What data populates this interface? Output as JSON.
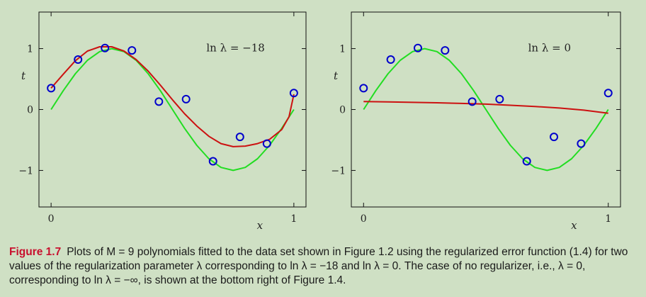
{
  "chart_data": [
    {
      "type": "scatter+line",
      "annotation": "ln λ = −18",
      "xlabel": "x",
      "ylabel": "t",
      "xlim": [
        -0.05,
        1.05
      ],
      "ylim": [
        -1.6,
        1.6
      ],
      "xticks": [
        {
          "v": 0,
          "label": "0"
        },
        {
          "v": 1,
          "label": "1"
        }
      ],
      "yticks": [
        {
          "v": -1,
          "label": "−1"
        },
        {
          "v": 0,
          "label": "0"
        },
        {
          "v": 1,
          "label": "1"
        }
      ],
      "points": {
        "name": "data",
        "x": [
          0.0,
          0.111,
          0.222,
          0.333,
          0.444,
          0.556,
          0.667,
          0.778,
          0.889,
          1.0
        ],
        "y": [
          0.35,
          0.82,
          1.01,
          0.97,
          0.13,
          0.17,
          -0.85,
          -0.45,
          -0.56,
          0.27
        ]
      },
      "series": [
        {
          "name": "sin(2πx)",
          "x": [
            0,
            0.05,
            0.1,
            0.15,
            0.2,
            0.25,
            0.3,
            0.35,
            0.4,
            0.45,
            0.5,
            0.55,
            0.6,
            0.65,
            0.7,
            0.75,
            0.8,
            0.85,
            0.9,
            0.95,
            1.0
          ],
          "y": [
            0.0,
            0.309,
            0.588,
            0.809,
            0.951,
            1.0,
            0.951,
            0.809,
            0.588,
            0.309,
            0.0,
            -0.309,
            -0.588,
            -0.809,
            -0.951,
            -1.0,
            -0.951,
            -0.809,
            -0.588,
            -0.309,
            0.0
          ]
        },
        {
          "name": "M=9 fit",
          "x": [
            0,
            0.05,
            0.1,
            0.15,
            0.2,
            0.25,
            0.3,
            0.35,
            0.4,
            0.45,
            0.5,
            0.55,
            0.6,
            0.65,
            0.7,
            0.75,
            0.8,
            0.85,
            0.9,
            0.95,
            0.98,
            1.0
          ],
          "y": [
            0.35,
            0.58,
            0.8,
            0.96,
            1.03,
            1.03,
            0.96,
            0.82,
            0.63,
            0.4,
            0.16,
            -0.07,
            -0.27,
            -0.44,
            -0.56,
            -0.61,
            -0.6,
            -0.56,
            -0.49,
            -0.33,
            -0.12,
            0.25
          ]
        }
      ]
    },
    {
      "type": "scatter+line",
      "annotation": "ln λ = 0",
      "xlabel": "x",
      "ylabel": "t",
      "xlim": [
        -0.05,
        1.05
      ],
      "ylim": [
        -1.6,
        1.6
      ],
      "xticks": [
        {
          "v": 0,
          "label": "0"
        },
        {
          "v": 1,
          "label": "1"
        }
      ],
      "yticks": [
        {
          "v": -1,
          "label": "−1"
        },
        {
          "v": 0,
          "label": "0"
        },
        {
          "v": 1,
          "label": "1"
        }
      ],
      "points": {
        "name": "data",
        "x": [
          0.0,
          0.111,
          0.222,
          0.333,
          0.444,
          0.556,
          0.667,
          0.778,
          0.889,
          1.0
        ],
        "y": [
          0.35,
          0.82,
          1.01,
          0.97,
          0.13,
          0.17,
          -0.85,
          -0.45,
          -0.56,
          0.27
        ]
      },
      "series": [
        {
          "name": "sin(2πx)",
          "x": [
            0,
            0.05,
            0.1,
            0.15,
            0.2,
            0.25,
            0.3,
            0.35,
            0.4,
            0.45,
            0.5,
            0.55,
            0.6,
            0.65,
            0.7,
            0.75,
            0.8,
            0.85,
            0.9,
            0.95,
            1.0
          ],
          "y": [
            0.0,
            0.309,
            0.588,
            0.809,
            0.951,
            1.0,
            0.951,
            0.809,
            0.588,
            0.309,
            0.0,
            -0.309,
            -0.588,
            -0.809,
            -0.951,
            -1.0,
            -0.951,
            -0.809,
            -0.588,
            -0.309,
            0.0
          ]
        },
        {
          "name": "M=9 fit",
          "x": [
            0,
            0.1,
            0.2,
            0.3,
            0.4,
            0.5,
            0.6,
            0.7,
            0.8,
            0.9,
            1.0
          ],
          "y": [
            0.13,
            0.125,
            0.118,
            0.11,
            0.1,
            0.088,
            0.07,
            0.05,
            0.025,
            -0.01,
            -0.06
          ]
        }
      ]
    }
  ],
  "colors": {
    "background": "#cfe0c4",
    "plot_area": "#cfe0c4",
    "sine": "#22dd22",
    "fit": "#cc1111",
    "points": "#0000cc",
    "axes": "#111111"
  },
  "caption": {
    "label": "Figure 1.7",
    "text": "Plots of M = 9 polynomials fitted to the data set shown in Figure 1.2 using the regularized error function (1.4) for two values of the regularization parameter λ corresponding to ln λ = −18 and ln λ = 0. The case of no regularizer, i.e., λ = 0, corresponding to ln λ = −∞, is shown at the bottom right of Figure 1.4."
  }
}
